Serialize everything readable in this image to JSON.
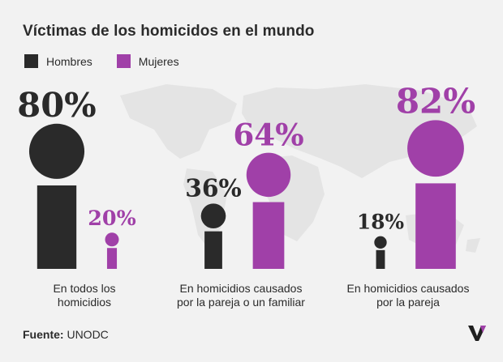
{
  "title": "Víctimas de los homicidos en el mundo",
  "legend": [
    {
      "label": "Hombres",
      "color": "#2a2a2a"
    },
    {
      "label": "Mujeres",
      "color": "#a040a8"
    }
  ],
  "chart_data": {
    "type": "bar",
    "title": "Víctimas de los homicidos en el mundo",
    "categories": [
      "En todos los homicidios",
      "En homicidios causados por la pareja o un familiar",
      "En homicidios causados por la pareja"
    ],
    "series": [
      {
        "name": "Hombres",
        "values": [
          80,
          36,
          18
        ],
        "labels": [
          "80%",
          "36%",
          "18%"
        ],
        "color": "#2a2a2a"
      },
      {
        "name": "Mujeres",
        "values": [
          20,
          64,
          82
        ],
        "labels": [
          "20%",
          "64%",
          "82%"
        ],
        "color": "#a040a8"
      }
    ],
    "ylim": [
      0,
      100
    ]
  },
  "group_labels": [
    [
      "En todos los",
      "homicidios"
    ],
    [
      "En homicidios causados",
      "por la pareja o un familiar"
    ],
    [
      "En homicidios causados",
      "por la pareja"
    ]
  ],
  "source": {
    "label": "Fuente:",
    "value": "UNODC"
  }
}
